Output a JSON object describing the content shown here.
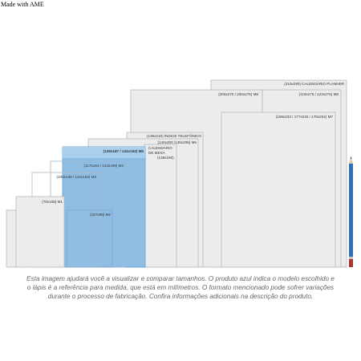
{
  "watermark": "Made with AME",
  "sizes": [
    {
      "label": "(210x290) CALENDÁRIO PLANNER"
    },
    {
      "label": "(200x270 / 200x275) M9"
    },
    {
      "label": "(119x275 / 123x275) M8"
    },
    {
      "label": "(159x233 / 177x240 / 178x254) M7"
    },
    {
      "label": "(139x210) ÍNDICE TELEFÔNICO"
    },
    {
      "label": "(140x200 /145x205) M6"
    },
    {
      "label": "CALENDÁRIO"
    },
    {
      "label": "DE MESA"
    },
    {
      "label": "(138x190)"
    },
    {
      "label": "(129x187 / 134x192) M5"
    },
    {
      "label": "(117x164 / 123x166) M4"
    },
    {
      "label": "(105x148 / 110x154) M3"
    },
    {
      "label": "(78x108) M1"
    },
    {
      "label": "(167x89) M2"
    }
  ],
  "caption": [
    "Esta imagem ajudará você a visualizar e comparar tamanhos. O produto azul indica o modelo escolhido e",
    "o lápis é a referência para medida, que está em milímetros. O formato mencionado pode sofrer variações",
    "durante o processo de fabricação. Confira informações adicionais na descrição do produto."
  ]
}
